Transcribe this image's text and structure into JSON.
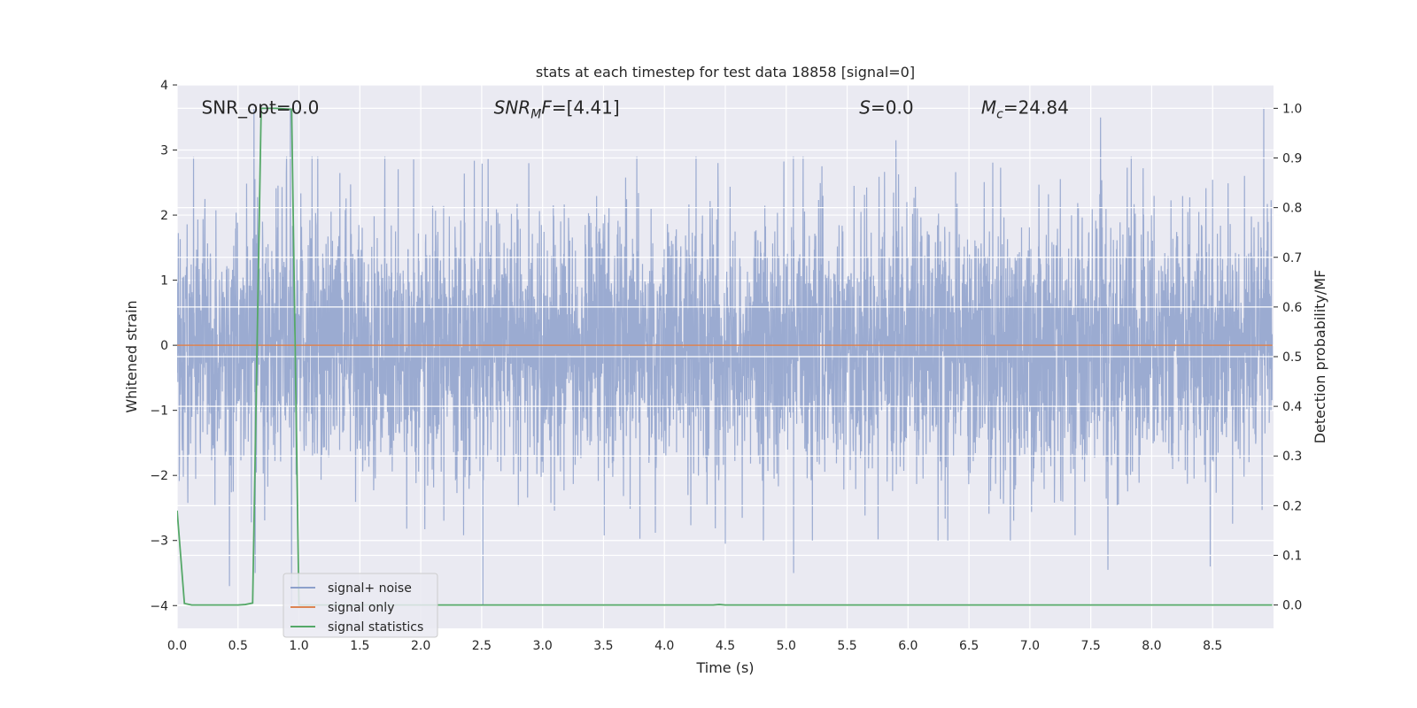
{
  "chart_data": {
    "type": "line",
    "title": "stats at each timestep for test data 18858 [signal=0]",
    "xlabel": "Time (s)",
    "ylabel_left": "Whitened strain",
    "ylabel_right": "Detection probability/MF",
    "xlim": [
      0.0,
      9.0
    ],
    "ylim_left": [
      -4.35,
      4.0
    ],
    "ylim_right": [
      -0.047,
      1.047
    ],
    "x_ticks": [
      0.0,
      0.5,
      1.0,
      1.5,
      2.0,
      2.5,
      3.0,
      3.5,
      4.0,
      4.5,
      5.0,
      5.5,
      6.0,
      6.5,
      7.0,
      7.5,
      8.0,
      8.5
    ],
    "x_tick_labels": [
      "0.0",
      "0.5",
      "1.0",
      "1.5",
      "2.0",
      "2.5",
      "3.0",
      "3.5",
      "4.0",
      "4.5",
      "5.0",
      "5.5",
      "6.0",
      "6.5",
      "7.0",
      "7.5",
      "8.0",
      "8.5"
    ],
    "y_left_ticks": [
      4,
      3,
      2,
      1,
      0,
      -1,
      -2,
      -3,
      -4
    ],
    "y_left_tick_labels": [
      "4",
      "3",
      "2",
      "1",
      "0",
      "−1",
      "−2",
      "−3",
      "−4"
    ],
    "y_right_ticks": [
      1.0,
      0.9,
      0.8,
      0.7,
      0.6,
      0.5,
      0.4,
      0.3,
      0.2,
      0.1,
      0.0
    ],
    "y_right_tick_labels": [
      "1.0",
      "0.9",
      "0.8",
      "0.7",
      "0.6",
      "0.5",
      "0.4",
      "0.3",
      "0.2",
      "0.1",
      "0.0"
    ],
    "grid": true,
    "legend_position": "lower-left",
    "annotations": [
      {
        "id": "snr-opt",
        "x": 0.2,
        "y": 3.65,
        "parts": [
          {
            "t": "SNR_opt=0.0",
            "s": "n"
          }
        ]
      },
      {
        "id": "snr-mf",
        "x": 2.6,
        "y": 3.65,
        "parts": [
          {
            "t": "SNR",
            "s": "i"
          },
          {
            "t": "M",
            "s": "isub"
          },
          {
            "t": "F",
            "s": "i"
          },
          {
            "t": "=[4.41]",
            "s": "n"
          }
        ]
      },
      {
        "id": "s-value",
        "x": 5.6,
        "y": 3.65,
        "parts": [
          {
            "t": "S",
            "s": "i"
          },
          {
            "t": "=0.0",
            "s": "n"
          }
        ]
      },
      {
        "id": "mc-value",
        "x": 6.6,
        "y": 3.65,
        "parts": [
          {
            "t": "M",
            "s": "i"
          },
          {
            "t": "c",
            "s": "isub"
          },
          {
            "t": "=24.84",
            "s": "n"
          }
        ]
      }
    ],
    "series": [
      {
        "name": "signal+ noise",
        "axis": "left",
        "color": "#8da0cb",
        "kind": "noise",
        "sample_rate": 512,
        "x_range": [
          0.0,
          8.99
        ],
        "sigma": 1.0,
        "peaks": [
          {
            "x": 0.63,
            "y": 3.65
          },
          {
            "x": 0.64,
            "y": -3.5
          },
          {
            "x": 0.93,
            "y": 3.65
          },
          {
            "x": 0.94,
            "y": -4.0
          },
          {
            "x": 0.43,
            "y": -3.7
          },
          {
            "x": 2.51,
            "y": -4.0
          },
          {
            "x": 3.35,
            "y": 1.85
          },
          {
            "x": 4.44,
            "y": 2.8
          },
          {
            "x": 4.5,
            "y": -3.05
          },
          {
            "x": 5.06,
            "y": -3.5
          },
          {
            "x": 5.9,
            "y": 3.15
          },
          {
            "x": 7.58,
            "y": 3.5
          },
          {
            "x": 7.64,
            "y": -3.45
          },
          {
            "x": 8.48,
            "y": -3.4
          },
          {
            "x": 8.92,
            "y": 3.65
          }
        ]
      },
      {
        "name": "signal only",
        "axis": "left",
        "color": "#dd8452",
        "x": [
          0.0,
          8.99
        ],
        "y": [
          0.0,
          0.0
        ]
      },
      {
        "name": "signal statistics",
        "axis": "right",
        "color": "#55a868",
        "x": [
          0.0,
          0.06,
          0.12,
          0.18,
          0.25,
          0.31,
          0.37,
          0.44,
          0.5,
          0.56,
          0.62,
          0.69,
          0.75,
          0.81,
          0.87,
          0.94,
          1.0,
          1.06,
          1.5,
          2.0,
          2.5,
          3.0,
          3.5,
          4.0,
          4.4,
          4.45,
          4.5,
          5.0,
          6.0,
          7.0,
          8.0,
          8.99
        ],
        "y": [
          0.19,
          0.003,
          0.0,
          0.0,
          0.0,
          0.0,
          0.0,
          0.0,
          0.0,
          0.001,
          0.004,
          1.0,
          1.0,
          1.0,
          0.999,
          0.998,
          0.0,
          0.0,
          0.0,
          0.0,
          0.0,
          0.0,
          0.0,
          0.0,
          0.0,
          0.001,
          0.0,
          0.0,
          0.0,
          0.0,
          0.0,
          0.0
        ]
      }
    ]
  }
}
